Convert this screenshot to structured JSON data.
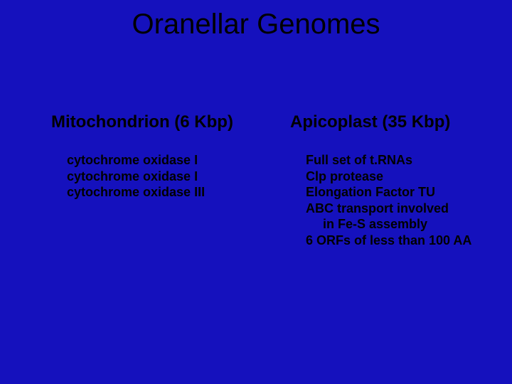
{
  "title": "Oranellar Genomes",
  "left": {
    "heading": "Mitochondrion (6 Kbp)",
    "items": [
      "cytochrome oxidase I",
      "cytochrome oxidase I",
      "cytochrome oxidase III"
    ]
  },
  "right": {
    "heading": "Apicoplast (35 Kbp)",
    "items": [
      "Full set of t.RNAs",
      "Clp protease",
      "Elongation Factor TU",
      "ABC transport involved",
      "   in Fe-S assembly",
      "6 ORFs of less than 100 AA"
    ]
  },
  "style": {
    "background_color": "#1511bd",
    "text_color": "#000000",
    "title_fontsize": 40,
    "heading_fontsize": 24,
    "item_fontsize": 18,
    "font_family": "Arial"
  }
}
